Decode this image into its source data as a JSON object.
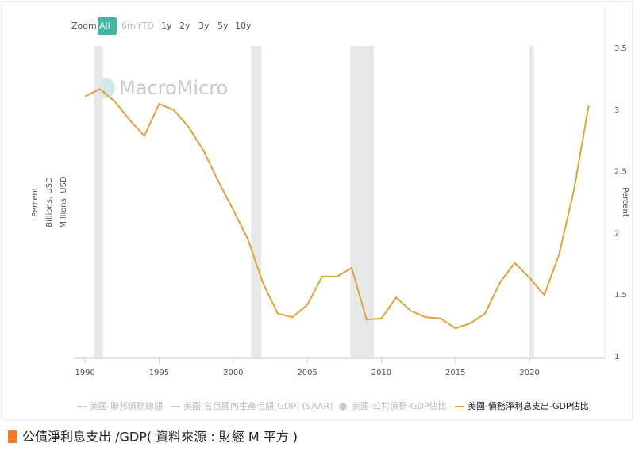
{
  "zoom": {
    "label": "Zoom",
    "buttons": [
      "All",
      "6m",
      "YTD",
      "1y",
      "2y",
      "3y",
      "5y",
      "10y"
    ],
    "active": 0
  },
  "watermark": "MacroMicro",
  "caption": "公債淨利息支出 /GDP( 資料來源 : 財經 M 平方 )",
  "chart_data": {
    "type": "line",
    "left_axis_titles": [
      "Percent",
      "Billions, USD",
      "Millions, USD"
    ],
    "y_axis_title": "Percent",
    "x": [
      1990,
      1991,
      1992,
      1993,
      1994,
      1995,
      1996,
      1997,
      1998,
      1999,
      2000,
      2001,
      2002,
      2003,
      2004,
      2005,
      2006,
      2007,
      2008,
      2009,
      2010,
      2011,
      2012,
      2013,
      2014,
      2015,
      2016,
      2017,
      2018,
      2019,
      2020,
      2021,
      2022,
      2023,
      2024
    ],
    "series": [
      {
        "name": "美國-聯邦債務總額",
        "visible": false
      },
      {
        "name": "美國-名目國內生產毛額[GDP] (SAAR)",
        "visible": false
      },
      {
        "name": "美國-公共債務-GDP佔比",
        "visible": false
      },
      {
        "name": "美國-債務淨利息支出-GDP佔比",
        "visible": true,
        "color": "#e0a33a",
        "values": [
          3.11,
          3.17,
          3.07,
          2.92,
          2.79,
          3.05,
          3.0,
          2.86,
          2.67,
          2.42,
          2.19,
          1.95,
          1.6,
          1.35,
          1.32,
          1.42,
          1.65,
          1.65,
          1.72,
          1.3,
          1.31,
          1.48,
          1.37,
          1.32,
          1.31,
          1.23,
          1.27,
          1.35,
          1.6,
          1.76,
          1.64,
          1.5,
          1.83,
          2.35,
          3.04
        ]
      }
    ],
    "recessions": [
      [
        1990.6,
        1991.2
      ],
      [
        2001.2,
        2001.9
      ],
      [
        2007.9,
        2009.5
      ],
      [
        2020.0,
        2020.3
      ]
    ],
    "xlim": [
      1989.4,
      2025.3
    ],
    "xticks": [
      1990,
      1995,
      2000,
      2005,
      2010,
      2015,
      2020
    ],
    "ylim": [
      1,
      3.5
    ],
    "yticks": [
      1,
      1.5,
      2,
      2.5,
      3,
      3.5
    ]
  }
}
